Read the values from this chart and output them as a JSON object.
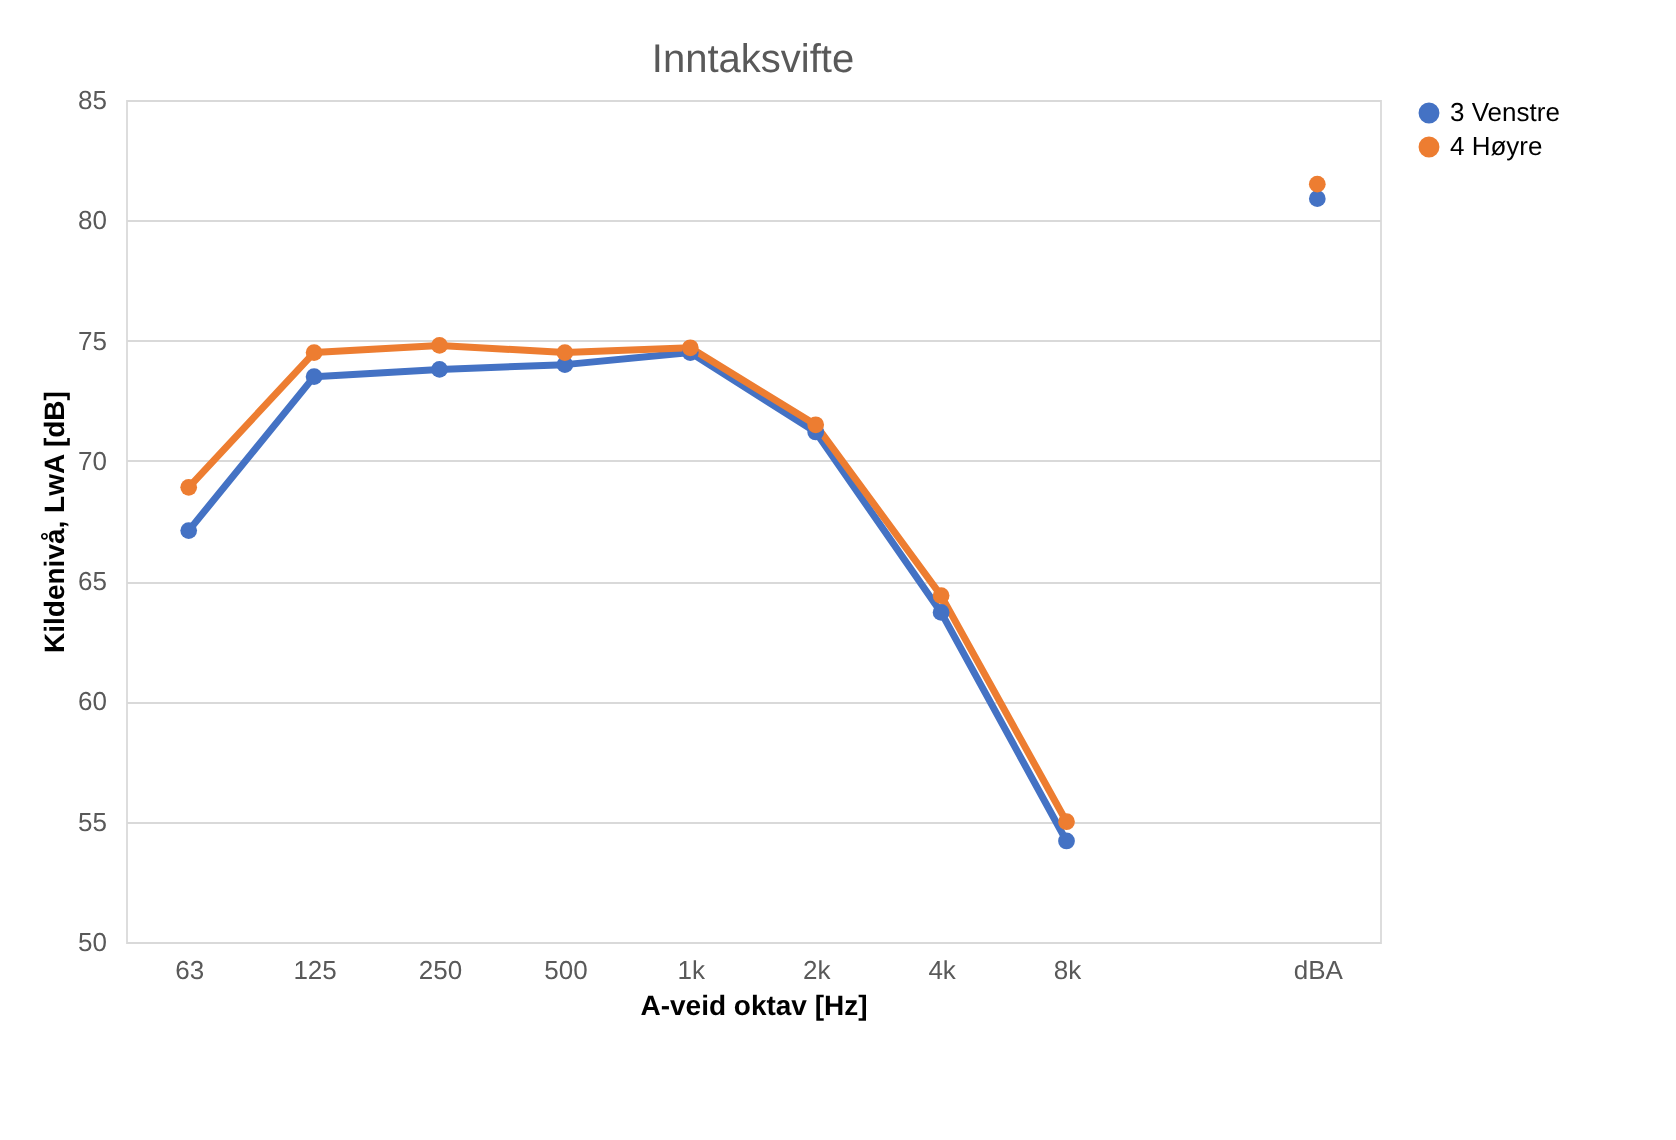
{
  "chart_data": {
    "type": "line",
    "title": "Inntaksvifte",
    "xlabel": "A-veid oktav [Hz]",
    "ylabel": "Kildenivå, LwA [dB]",
    "categories": [
      "63",
      "125",
      "250",
      "500",
      "1k",
      "2k",
      "4k",
      "8k",
      null,
      "dBA"
    ],
    "series": [
      {
        "name": "3 Venstre",
        "color": "#4472c4",
        "values": [
          67.1,
          73.5,
          73.8,
          74.0,
          74.5,
          71.2,
          63.7,
          54.2,
          null,
          80.9
        ]
      },
      {
        "name": "4 Høyre",
        "color": "#ed7d31",
        "values": [
          68.9,
          74.5,
          74.8,
          74.5,
          74.7,
          71.5,
          64.4,
          55.0,
          null,
          81.5
        ]
      }
    ],
    "ylim": [
      50,
      85
    ],
    "yticks": [
      50,
      55,
      60,
      65,
      70,
      75,
      80,
      85
    ],
    "grid": "y",
    "legend": "right",
    "marker": "circle",
    "line_style": "solid"
  }
}
